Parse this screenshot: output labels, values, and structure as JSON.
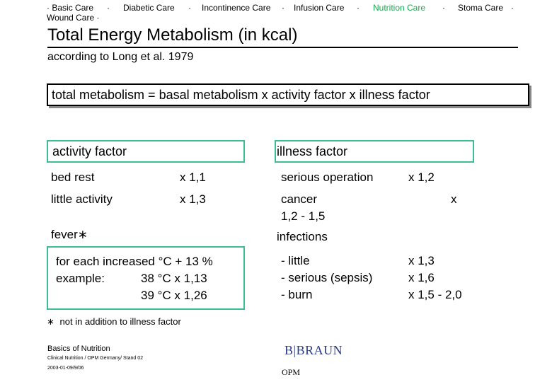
{
  "nav": {
    "items": [
      "Basic Care",
      "Wound Care",
      "Diabetic Care",
      "Incontinence Care",
      "Infusion Care",
      "Nutrition Care",
      "Stoma Care"
    ],
    "separator": "·",
    "active_color": "#1aa850"
  },
  "title": "Total Energy Metabolism (in kcal)",
  "subtitle": "according to Long et al. 1979",
  "formula": "total metabolism = basal metabolism x activity factor x illness factor",
  "activity": {
    "heading": "activity factor",
    "rows": [
      {
        "label": "bed rest",
        "value": "x 1,1"
      },
      {
        "label": "little activity",
        "value": "x 1,3"
      }
    ]
  },
  "fever": {
    "heading": "fever",
    "mark": "∗",
    "line1": "for each increased °C + 13 %",
    "example_label": "example:",
    "ex1": "38 °C  x 1,13",
    "ex2": "39 °C  x 1,26"
  },
  "illness": {
    "heading": "illness factor",
    "serious_operation": "serious operation",
    "serious_operation_value": "x 1,2",
    "cancer": "cancer",
    "cancer_x": "x",
    "cancer_range": "1,2 - 1,5",
    "infections": "infections",
    "inf_rows": [
      {
        "label": "- little",
        "value": "x 1,3"
      },
      {
        "label": "- serious (sepsis)",
        "value": "x 1,6"
      },
      {
        "label": "- burn",
        "value": "x 1,5 - 2,0"
      }
    ]
  },
  "footnote": {
    "mark": "∗",
    "text": "not in addition to illness factor"
  },
  "footer": {
    "basics": "Basics of Nutrition",
    "clinical": "Clinical Nutrition / OPM Germany/ Stand 02",
    "date": "2003-01-09/9/06",
    "brand": "B|BRAUN",
    "opm": "OPM"
  }
}
